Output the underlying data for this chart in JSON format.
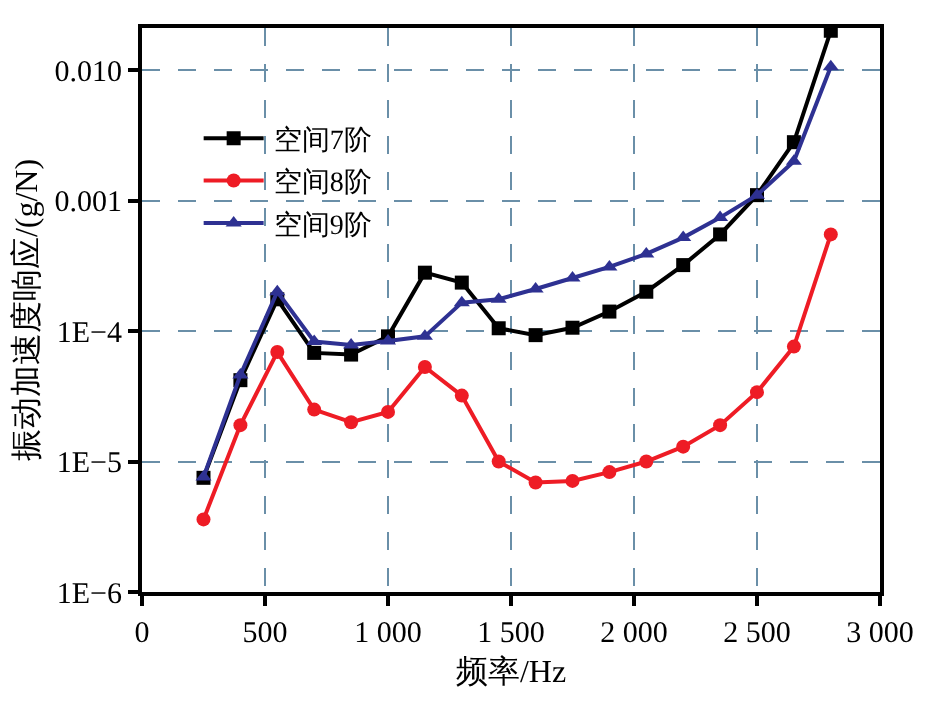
{
  "chart_data": {
    "type": "line",
    "xlabel": "频率/Hz",
    "ylabel": "振动加速度响应/(g/N)",
    "x": [
      250,
      400,
      550,
      700,
      850,
      1000,
      1150,
      1300,
      1450,
      1600,
      1750,
      1900,
      2050,
      2200,
      2350,
      2500,
      2650,
      2800
    ],
    "series": [
      {
        "name": "空间7阶",
        "color": "#000000",
        "marker": "square",
        "values": [
          7.5e-06,
          4.2e-05,
          0.000175,
          6.8e-05,
          6.6e-05,
          9.1e-05,
          0.00028,
          0.000235,
          0.000105,
          9.3e-05,
          0.000106,
          0.000141,
          0.0002,
          0.00032,
          0.00055,
          0.0011,
          0.0028,
          0.02
        ]
      },
      {
        "name": "空间8阶",
        "color": "#ee1c25",
        "marker": "circle",
        "values": [
          3.6e-06,
          1.9e-05,
          6.9e-05,
          2.5e-05,
          2e-05,
          2.4e-05,
          5.3e-05,
          3.2e-05,
          1e-05,
          6.9e-06,
          7.1e-06,
          8.3e-06,
          1e-05,
          1.3e-05,
          1.9e-05,
          3.4e-05,
          7.6e-05,
          0.00055
        ]
      },
      {
        "name": "空间9阶",
        "color": "#2e3192",
        "marker": "triangle",
        "values": [
          7.6e-06,
          4.6e-05,
          0.0002,
          8.3e-05,
          7.8e-05,
          8.4e-05,
          9.1e-05,
          0.000165,
          0.000175,
          0.00021,
          0.000255,
          0.00031,
          0.00039,
          0.00052,
          0.00074,
          0.0011,
          0.002,
          0.0106
        ]
      }
    ],
    "log": "y",
    "xlim": [
      0,
      3000
    ],
    "ylim": [
      1e-06,
      0.021
    ],
    "xticks": [
      0,
      500,
      {
        "value": 1000,
        "label": "1 000"
      },
      {
        "value": 1500,
        "label": "1 500"
      },
      {
        "value": 2000,
        "label": "2 000"
      },
      {
        "value": 2500,
        "label": "2 500"
      },
      {
        "value": 3000,
        "label": "3 000"
      }
    ],
    "yticks": [
      {
        "value": 1e-06,
        "label": "1E−6"
      },
      {
        "value": 1e-05,
        "label": "1E−5"
      },
      {
        "value": 0.0001,
        "label": "1E−4"
      },
      {
        "value": 0.001,
        "label": "0.001"
      },
      {
        "value": 0.01,
        "label": "0.010"
      }
    ],
    "grid": true,
    "legend": "top left",
    "line_style": "solid"
  }
}
